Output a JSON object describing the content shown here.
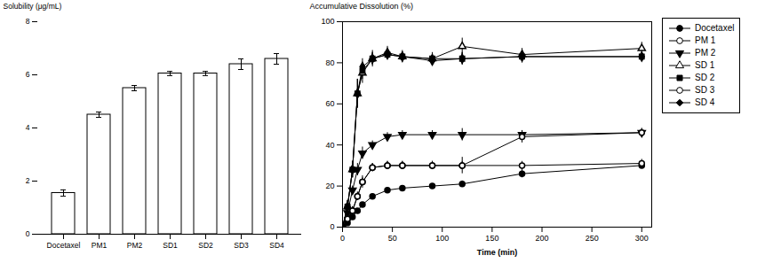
{
  "chart_data": [
    {
      "type": "bar",
      "categories": [
        "Docetaxel",
        "PM1",
        "PM2",
        "SD1",
        "SD2",
        "SD3",
        "SD4"
      ],
      "values": [
        1.55,
        4.5,
        5.5,
        6.05,
        6.05,
        6.4,
        6.6
      ],
      "errors": [
        0.12,
        0.1,
        0.1,
        0.08,
        0.08,
        0.2,
        0.2
      ],
      "color": "white",
      "ylabel": "Solubility (μg/mL)",
      "ylim": [
        0,
        8
      ],
      "yticks": [
        0,
        2,
        4,
        6,
        8
      ]
    },
    {
      "type": "line",
      "x": [
        0,
        5,
        10,
        15,
        20,
        30,
        45,
        60,
        90,
        120,
        180,
        300
      ],
      "series": [
        {
          "name": "Docetaxel",
          "color": "#000000",
          "marker": "circle",
          "values": [
            0,
            2,
            5,
            8,
            11,
            15,
            18,
            19,
            20,
            21,
            26,
            30
          ],
          "errors": [
            0,
            0.5,
            1,
            1,
            1,
            1,
            1,
            1,
            1,
            1.5,
            2,
            1.5
          ]
        },
        {
          "name": "PM 1",
          "color": "#000000",
          "marker": "circle-open",
          "values": [
            0,
            4,
            8,
            15,
            22,
            29,
            30,
            30,
            30,
            30,
            30,
            31
          ],
          "errors": [
            0,
            1,
            2,
            2,
            2,
            2,
            2,
            2,
            2,
            2,
            2,
            2
          ]
        },
        {
          "name": "PM 2",
          "color": "#000000",
          "marker": "triangle-down",
          "values": [
            0,
            7,
            18,
            28,
            36,
            40,
            44,
            45,
            45,
            45,
            45,
            46
          ],
          "errors": [
            0,
            2,
            2,
            3,
            3,
            2,
            2,
            2,
            2,
            3,
            2,
            2
          ]
        },
        {
          "name": "SD 1",
          "color": "#000000",
          "marker": "triangle-open",
          "values": [
            0,
            10,
            28,
            65,
            75,
            82,
            85,
            83,
            82,
            88,
            84,
            87
          ],
          "errors": [
            0,
            3,
            4,
            7,
            5,
            4,
            3,
            3,
            3,
            4,
            3,
            3
          ]
        },
        {
          "name": "SD 2",
          "color": "#000000",
          "marker": "square",
          "values": [
            0,
            10,
            28,
            65,
            76,
            82,
            84,
            83,
            82,
            82,
            83,
            83
          ],
          "errors": [
            0,
            3,
            4,
            7,
            4,
            3,
            2,
            2,
            2,
            3,
            3,
            2
          ]
        },
        {
          "name": "SD 3",
          "color": "#000000",
          "marker": "circle-open",
          "values": [
            0,
            4,
            8,
            15,
            22,
            29,
            30,
            30,
            30,
            30,
            44,
            46
          ],
          "errors": [
            0,
            1,
            2,
            2,
            3,
            2,
            2,
            2,
            2,
            4,
            3,
            2
          ]
        },
        {
          "name": "SD 4",
          "color": "#000000",
          "marker": "diamond",
          "values": [
            0,
            10,
            28,
            65,
            78,
            82,
            84,
            83,
            81,
            82,
            83,
            83
          ],
          "errors": [
            0,
            3,
            4,
            7,
            4,
            3,
            2,
            2,
            2,
            3,
            3,
            2
          ]
        }
      ],
      "xlabel": "Time (min)",
      "ylabel": "Accumulative Dissolution (%)",
      "xlim": [
        0,
        310
      ],
      "ylim": [
        0,
        100
      ],
      "xticks": [
        0,
        50,
        100,
        150,
        200,
        250,
        300
      ],
      "yticks": [
        0,
        20,
        40,
        60,
        80,
        100
      ],
      "legend": "right"
    }
  ]
}
